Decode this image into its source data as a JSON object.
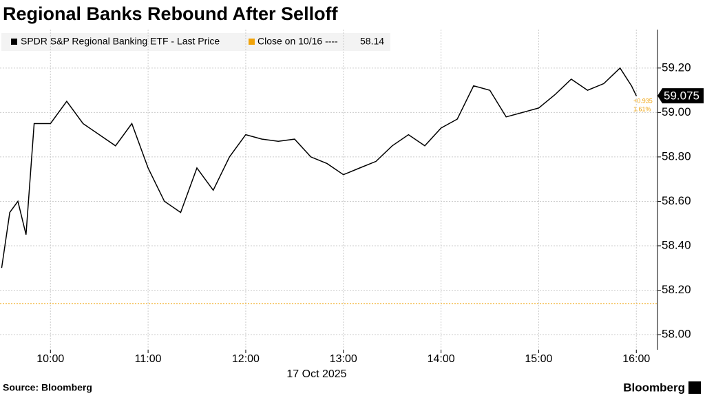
{
  "chart_data": {
    "type": "line",
    "title": "Regional Banks Rebound After Selloff",
    "x_label": "17 Oct 2025",
    "source": "Source: Bloomberg",
    "brand": "Bloomberg",
    "x": [
      570,
      575,
      580,
      585,
      590,
      600,
      610,
      620,
      630,
      640,
      650,
      660,
      670,
      680,
      690,
      700,
      710,
      720,
      730,
      740,
      750,
      760,
      770,
      780,
      790,
      800,
      810,
      820,
      830,
      840,
      850,
      860,
      870,
      880,
      890,
      900,
      910,
      920,
      930,
      940,
      950,
      957,
      960
    ],
    "series": [
      {
        "name": "SPDR S&P Regional Banking ETF - Last Price",
        "color": "#000000",
        "values": [
          58.3,
          58.55,
          58.6,
          58.45,
          58.95,
          58.95,
          59.05,
          58.95,
          58.9,
          58.85,
          58.95,
          58.75,
          58.6,
          58.55,
          58.75,
          58.65,
          58.8,
          58.9,
          58.88,
          58.87,
          58.88,
          58.8,
          58.77,
          58.72,
          58.75,
          58.78,
          58.85,
          58.9,
          58.85,
          58.93,
          58.97,
          59.12,
          59.1,
          58.98,
          59.0,
          59.02,
          59.08,
          59.15,
          59.1,
          59.13,
          59.2,
          59.12,
          59.075
        ]
      }
    ],
    "reference_line": {
      "name": "Close on 10/16 ----",
      "value": 58.14,
      "color": "#f0a30a"
    },
    "annotations": [
      "+0.935",
      "1.61%"
    ],
    "xlim": [
      569,
      973
    ],
    "xticks": [
      {
        "value": 600,
        "label": "10:00"
      },
      {
        "value": 660,
        "label": "11:00"
      },
      {
        "value": 720,
        "label": "12:00"
      },
      {
        "value": 780,
        "label": "13:00"
      },
      {
        "value": 840,
        "label": "14:00"
      },
      {
        "value": 900,
        "label": "15:00"
      },
      {
        "value": 960,
        "label": "16:00"
      }
    ],
    "ylim": [
      57.932,
      59.373
    ],
    "yticks": [
      {
        "value": 58.0,
        "label": "58.00"
      },
      {
        "value": 58.2,
        "label": "58.20"
      },
      {
        "value": 58.4,
        "label": "58.40"
      },
      {
        "value": 58.6,
        "label": "58.60"
      },
      {
        "value": 58.8,
        "label": "58.80"
      },
      {
        "value": 59.0,
        "label": "59.00"
      },
      {
        "value": 59.2,
        "label": "59.20"
      }
    ],
    "grid": true
  }
}
